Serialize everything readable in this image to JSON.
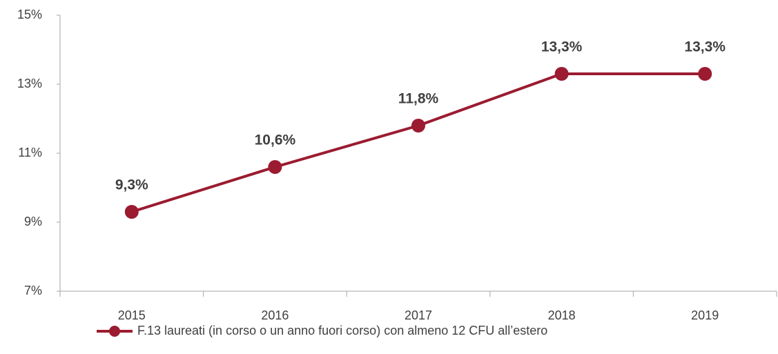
{
  "chart_data": {
    "type": "line",
    "categories": [
      "2015",
      "2016",
      "2017",
      "2018",
      "2019"
    ],
    "series": [
      {
        "name": "F.13 laureati (in corso o un anno fuori corso) con almeno 12 CFU all’estero",
        "color": "#9b1b30",
        "values": [
          9.3,
          10.6,
          11.8,
          13.3,
          13.3
        ],
        "value_labels": [
          "9,3%",
          "10,6%",
          "11,8%",
          "13,3%",
          "13,3%"
        ]
      }
    ],
    "ylim": [
      7,
      15
    ],
    "yticks": [
      {
        "value": 7,
        "label": "7%"
      },
      {
        "value": 9,
        "label": "9%"
      },
      {
        "value": 11,
        "label": "11%"
      },
      {
        "value": 13,
        "label": "13%"
      },
      {
        "value": 15,
        "label": "15%"
      }
    ],
    "grid": false,
    "legend": "bottom"
  }
}
